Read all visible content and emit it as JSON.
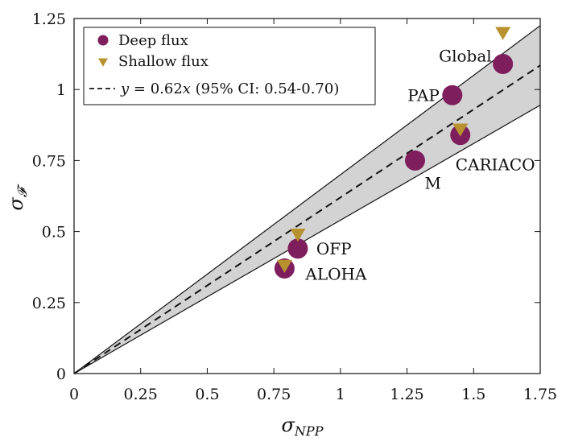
{
  "chart_data": {
    "type": "scatter",
    "xlabel_base": "σ",
    "xlabel_sub": "NPP",
    "ylabel_base": "σ",
    "ylabel_sub": "𝓕",
    "xlim": [
      0,
      1.75
    ],
    "ylim": [
      0,
      1.25
    ],
    "xticks": [
      0,
      0.25,
      0.5,
      0.75,
      1,
      1.25,
      1.5,
      1.75
    ],
    "xtick_labels": [
      "0",
      "0.25",
      "0.5",
      "0.75",
      "1",
      "1.25",
      "1.5",
      "1.75"
    ],
    "yticks": [
      0,
      0.25,
      0.5,
      0.75,
      1,
      1.25
    ],
    "ytick_labels": [
      "0",
      "0.25",
      "0.5",
      "0.75",
      "1",
      "1.25"
    ],
    "grid": false,
    "legend": {
      "placement": "top-left",
      "entries": [
        {
          "label": "Deep flux"
        },
        {
          "label": "Shallow flux"
        },
        {
          "label_var": "y",
          "label_eq": " = 0.62",
          "label_x": "x",
          "label_ci": " (95% CI: 0.54-0.70)"
        }
      ]
    },
    "colors": {
      "deep": "#7e1e5c",
      "shallow": "#b8922e",
      "band_fill": "#d3d3d3",
      "line": "#111111"
    },
    "fit": {
      "slope": 0.62,
      "ci_low": 0.54,
      "ci_high": 0.7
    },
    "series": [
      {
        "name": "Deep flux",
        "marker": "circle",
        "points": [
          {
            "site": "Global",
            "x": 1.61,
            "y": 1.09
          },
          {
            "site": "PAP",
            "x": 1.42,
            "y": 0.98
          },
          {
            "site": "CARIACO",
            "x": 1.45,
            "y": 0.84
          },
          {
            "site": "M",
            "x": 1.28,
            "y": 0.75
          },
          {
            "site": "OFP",
            "x": 0.84,
            "y": 0.44
          },
          {
            "site": "ALOHA",
            "x": 0.79,
            "y": 0.37
          }
        ]
      },
      {
        "name": "Shallow flux",
        "marker": "triangle-down",
        "points": [
          {
            "site": "Global",
            "x": 1.61,
            "y": 1.2
          },
          {
            "site": "CARIACO",
            "x": 1.45,
            "y": 0.86
          },
          {
            "site": "OFP",
            "x": 0.84,
            "y": 0.49
          },
          {
            "site": "ALOHA",
            "x": 0.79,
            "y": 0.38
          }
        ]
      }
    ],
    "annotations": [
      "Global",
      "PAP",
      "CARIACO",
      "M",
      "OFP",
      "ALOHA"
    ]
  }
}
